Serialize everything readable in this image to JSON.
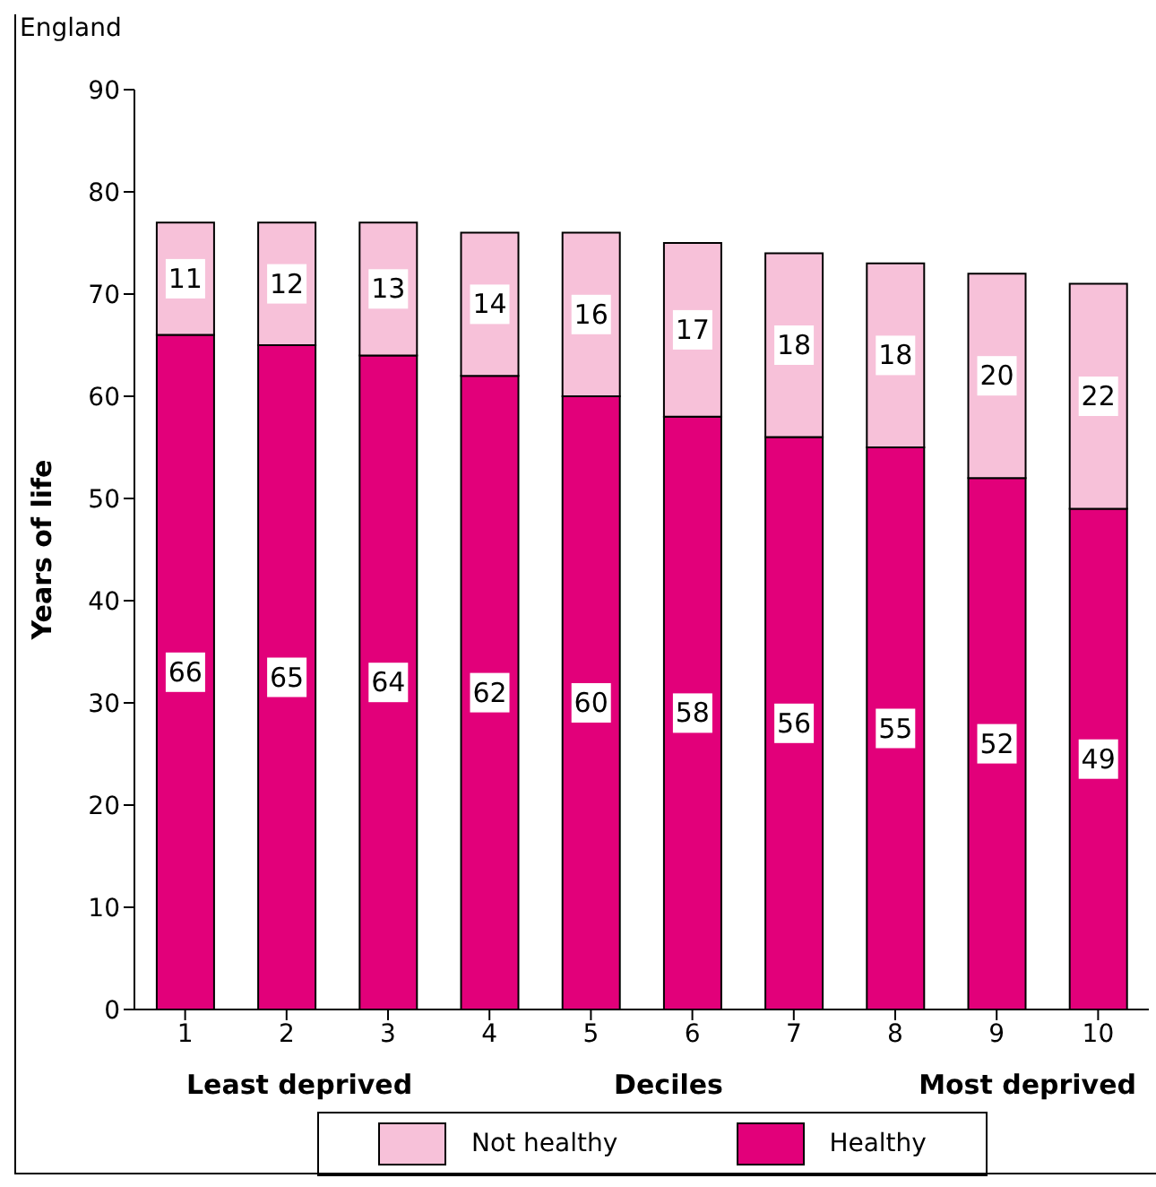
{
  "chart_data": {
    "type": "bar",
    "stacked": true,
    "ylabel": "Years of life",
    "xlabel": "Deciles",
    "annotations": [
      "England",
      "Least deprived",
      "Most deprived"
    ],
    "categories": [
      "1",
      "2",
      "3",
      "4",
      "5",
      "6",
      "7",
      "8",
      "9",
      "10"
    ],
    "series": [
      {
        "name": "Healthy",
        "color": "#e2007a",
        "values": [
          66,
          65,
          64,
          62,
          60,
          58,
          56,
          55,
          52,
          49
        ]
      },
      {
        "name": "Not healthy",
        "color": "#f7c1d9",
        "values": [
          11,
          12,
          13,
          14,
          16,
          17,
          18,
          18,
          20,
          22
        ]
      }
    ],
    "ylim": [
      0,
      90
    ],
    "yticks": [
      0,
      10,
      20,
      30,
      40,
      50,
      60,
      70,
      80,
      90
    ],
    "grid": false,
    "legend": "bottom",
    "data_labels": true
  }
}
